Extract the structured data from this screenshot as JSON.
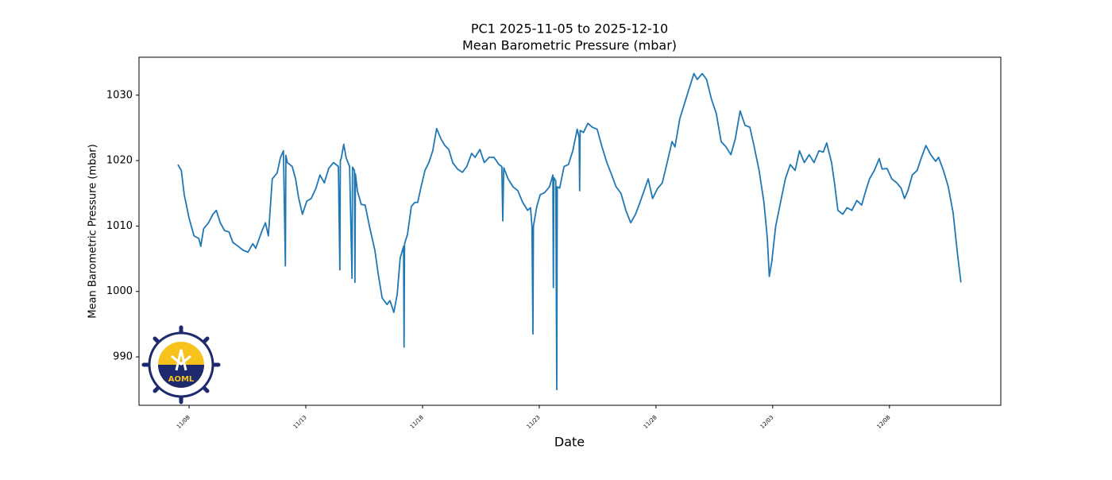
{
  "chart_data": {
    "type": "line",
    "title": "PC1 2025-11-05 to 2025-12-10",
    "subtitle": "Mean Barometric Pressure (mbar)",
    "x_label": "Date",
    "y_label": "Mean Barometric Pressure (mbar)",
    "logo_text": "AOML",
    "xlim": [
      "11/05 20:30",
      "12/12 18:30"
    ],
    "xticks": [
      "11/08",
      "11/13",
      "11/18",
      "11/23",
      "11/28",
      "12/03",
      "12/08"
    ],
    "ylim": [
      982.6,
      1035.8
    ],
    "yticks": [
      990,
      1000,
      1010,
      1020,
      1030
    ],
    "grid": false,
    "series": [
      {
        "name": "Mean Barometric Pressure",
        "color": "#1f77b4",
        "x": [
          "11/07 12:30",
          "11/07 16:00",
          "11/07 19:00",
          "11/08 00:00",
          "11/08 05:00",
          "11/08 10:00",
          "11/08 12:00",
          "11/08 15:00",
          "11/08 20:00",
          "11/09 00:30",
          "11/09 04:00",
          "11/09 08:00",
          "11/09 12:30",
          "11/09 17:00",
          "11/09 21:00",
          "11/10 02:30",
          "11/10 07:30",
          "11/10 12:30",
          "11/10 17:30",
          "11/10 20:30",
          "11/11 03:00",
          "11/11 06:30",
          "11/11 09:30",
          "11/11 13:30",
          "11/11 18:30",
          "11/11 22:00",
          "11/12 01:00",
          "11/12 03:00",
          "11/12 03:30",
          "11/12 05:00",
          "11/12 10:00",
          "11/12 13:30",
          "11/12 16:30",
          "11/12 20:30",
          "11/13 01:00",
          "11/13 05:30",
          "11/13 10:30",
          "11/13 14:30",
          "11/13 19:00",
          "11/13 23:30",
          "11/14 04:30",
          "11/14 09:30",
          "11/14 11:00",
          "11/14 11:30",
          "11/14 12:30",
          "11/14 15:00",
          "11/14 17:30",
          "11/14 21:00",
          "11/14 23:30",
          "11/15 00:00",
          "11/15 02:00",
          "11/15 02:30",
          "11/15 03:00",
          "11/15 05:00",
          "11/15 09:00",
          "11/15 13:00",
          "11/15 17:30",
          "11/15 23:00",
          "11/16 02:30",
          "11/16 06:30",
          "11/16 11:30",
          "11/16 14:30",
          "11/16 18:30",
          "11/16 22:00",
          "11/17 01:00",
          "11/17 04:30",
          "11/17 05:00",
          "11/17 05:30",
          "11/17 08:30",
          "11/17 12:30",
          "11/17 16:00",
          "11/17 19:00",
          "11/17 22:30",
          "11/18 02:30",
          "11/18 06:30",
          "11/18 10:30",
          "11/18 14:30",
          "11/18 19:00",
          "11/18 23:00",
          "11/19 03:00",
          "11/19 07:00",
          "11/19 12:00",
          "11/19 17:00",
          "11/19 21:30",
          "11/20 02:30",
          "11/20 06:00",
          "11/20 11:00",
          "11/20 15:30",
          "11/20 20:30",
          "11/21 01:30",
          "11/21 06:30",
          "11/21 09:30",
          "11/21 10:30",
          "11/21 11:30",
          "11/21 16:00",
          "11/21 21:00",
          "11/22 02:00",
          "11/22 07:00",
          "11/22 12:00",
          "11/22 15:00",
          "11/22 16:30",
          "11/22 17:30",
          "11/22 18:00",
          "11/22 21:30",
          "11/23 01:00",
          "11/23 05:30",
          "11/23 10:30",
          "11/23 14:00",
          "11/23 14:30",
          "11/23 15:00",
          "11/23 17:00",
          "11/23 18:00",
          "11/23 18:30",
          "11/23 21:00",
          "11/24 01:30",
          "11/24 06:00",
          "11/24 10:30",
          "11/24 15:00",
          "11/24 17:00",
          "11/24 17:30",
          "11/24 18:00",
          "11/24 21:30",
          "11/25 02:00",
          "11/25 06:30",
          "11/25 11:30",
          "11/25 16:30",
          "11/25 21:30",
          "11/26 02:30",
          "11/26 07:00",
          "11/26 12:00",
          "11/26 17:00",
          "11/26 22:00",
          "11/27 03:00",
          "11/27 07:30",
          "11/27 12:30",
          "11/27 16:00",
          "11/27 20:30",
          "11/28 01:30",
          "11/28 06:30",
          "11/28 11:30",
          "11/28 16:30",
          "11/28 19:30",
          "11/29 00:30",
          "11/29 05:30",
          "11/29 10:30",
          "11/29 15:00",
          "11/29 18:30",
          "11/29 23:30",
          "11/30 04:00",
          "11/30 09:00",
          "11/30 14:00",
          "11/30 19:00",
          "12/01 00:00",
          "12/01 05:00",
          "12/01 09:30",
          "12/01 14:30",
          "12/01 19:30",
          "12/02 00:30",
          "12/02 05:00",
          "12/02 10:00",
          "12/02 15:00",
          "12/02 18:30",
          "12/02 20:30",
          "12/02 23:00",
          "12/03 03:00",
          "12/03 08:00",
          "12/03 13:00",
          "12/03 18:00",
          "12/03 23:00",
          "12/04 03:30",
          "12/04 08:30",
          "12/04 13:30",
          "12/04 18:30",
          "12/04 23:30",
          "12/05 04:00",
          "12/05 07:30",
          "12/05 12:30",
          "12/05 15:30",
          "12/05 19:00",
          "12/06 00:00",
          "12/06 04:30",
          "12/06 09:30",
          "12/06 14:30",
          "12/06 19:30",
          "12/06 22:30",
          "12/07 03:30",
          "12/07 08:30",
          "12/07 13:30",
          "12/07 16:30",
          "12/07 21:30",
          "12/08 02:30",
          "12/08 07:30",
          "12/08 12:00",
          "12/08 15:30",
          "12/08 19:00",
          "12/08 23:30",
          "12/09 04:30",
          "12/09 08:30",
          "12/09 13:30",
          "12/09 18:30",
          "12/09 23:30",
          "12/10 02:30",
          "12/10 07:30",
          "12/10 12:30",
          "12/10 17:30",
          "12/10 22:00",
          "12/11 01:30"
        ],
        "values": [
          1019.4,
          1018.5,
          1014.8,
          1011.2,
          1008.5,
          1008.1,
          1006.9,
          1009.6,
          1010.5,
          1011.8,
          1012.4,
          1010.5,
          1009.3,
          1009.1,
          1007.5,
          1006.9,
          1006.3,
          1006.0,
          1007.3,
          1006.6,
          1009.3,
          1010.5,
          1008.5,
          1017.2,
          1018.1,
          1020.5,
          1021.5,
          1003.9,
          1020.8,
          1019.7,
          1019.1,
          1017.2,
          1014.4,
          1011.8,
          1013.8,
          1014.2,
          1015.8,
          1017.8,
          1016.6,
          1018.8,
          1019.7,
          1019.1,
          1003.3,
          1020.0,
          1020.4,
          1022.5,
          1020.4,
          1019.1,
          1002.0,
          1019.0,
          1018.5,
          1001.4,
          1018.0,
          1015.4,
          1013.3,
          1013.2,
          1009.9,
          1006.3,
          1002.6,
          999.0,
          998.0,
          998.6,
          996.8,
          999.6,
          1005.1,
          1006.9,
          991.5,
          1007.3,
          1008.7,
          1013.0,
          1013.6,
          1013.6,
          1016.0,
          1018.5,
          1019.7,
          1021.5,
          1024.9,
          1023.3,
          1022.3,
          1021.7,
          1019.7,
          1018.7,
          1018.2,
          1019.1,
          1021.1,
          1020.5,
          1021.7,
          1019.7,
          1020.5,
          1020.5,
          1019.4,
          1019.1,
          1010.8,
          1018.9,
          1017.2,
          1016.0,
          1015.4,
          1013.6,
          1012.4,
          1012.8,
          1009.9,
          993.5,
          1010.0,
          1013.0,
          1014.8,
          1015.1,
          1016.0,
          1017.8,
          1000.6,
          1017.4,
          1016.9,
          985.0,
          1016.0,
          1015.8,
          1019.1,
          1019.4,
          1021.5,
          1024.8,
          1023.5,
          1015.4,
          1024.6,
          1024.3,
          1025.7,
          1025.1,
          1024.8,
          1022.1,
          1019.7,
          1017.8,
          1016.0,
          1015.0,
          1012.4,
          1010.5,
          1011.8,
          1013.6,
          1015.7,
          1017.2,
          1014.2,
          1015.7,
          1016.6,
          1019.7,
          1022.9,
          1022.1,
          1026.4,
          1028.8,
          1031.2,
          1033.3,
          1032.4,
          1033.3,
          1032.4,
          1029.4,
          1027.2,
          1022.9,
          1022.1,
          1020.9,
          1023.3,
          1027.6,
          1025.4,
          1025.1,
          1022.1,
          1018.5,
          1013.6,
          1008.1,
          1002.3,
          1004.5,
          1009.9,
          1013.6,
          1017.2,
          1019.4,
          1018.5,
          1021.5,
          1019.7,
          1020.9,
          1019.7,
          1021.5,
          1021.3,
          1022.7,
          1019.7,
          1016.6,
          1012.4,
          1011.8,
          1012.8,
          1012.4,
          1013.9,
          1013.2,
          1014.8,
          1017.2,
          1018.5,
          1020.3,
          1018.7,
          1018.8,
          1017.2,
          1016.6,
          1015.8,
          1014.2,
          1015.4,
          1017.8,
          1018.5,
          1020.3,
          1022.3,
          1020.9,
          1019.9,
          1020.5,
          1018.5,
          1016.0,
          1012.0,
          1005.7,
          1001.4
        ]
      }
    ]
  }
}
